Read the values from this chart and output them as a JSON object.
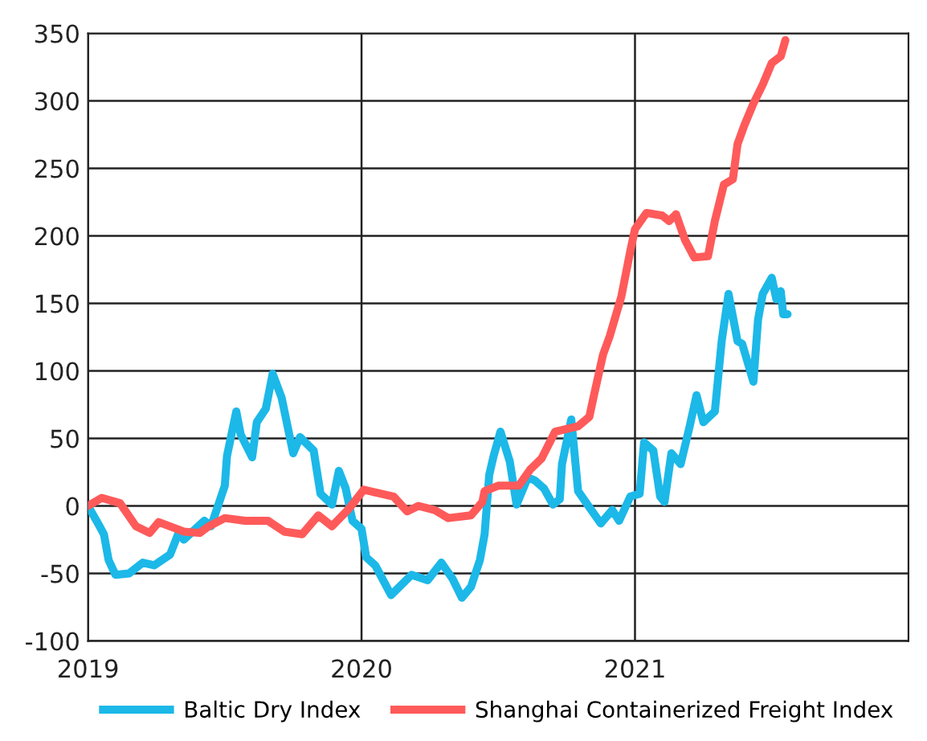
{
  "chart_data": {
    "type": "line",
    "xlim": [
      2019,
      2022
    ],
    "xticks": [
      2019,
      2020,
      2021
    ],
    "ylim": [
      -100,
      350
    ],
    "yticks": [
      -100,
      -50,
      0,
      50,
      100,
      150,
      200,
      250,
      300,
      350
    ],
    "grid": true,
    "legend": "bottom",
    "line_style": "solid",
    "marker": "none",
    "series": [
      {
        "name": "Baltic Dry Index",
        "color": "#1cb8e8",
        "x": [
          2019.0,
          2019.042,
          2019.058,
          2019.075,
          2019.1,
          2019.15,
          2019.2,
          2019.242,
          2019.3,
          2019.333,
          2019.35,
          2019.425,
          2019.45,
          2019.5,
          2019.508,
          2019.542,
          2019.558,
          2019.6,
          2019.617,
          2019.65,
          2019.675,
          2019.708,
          2019.75,
          2019.775,
          2019.825,
          2019.85,
          2019.892,
          2019.917,
          2019.942,
          2019.967,
          2020.0,
          2020.017,
          2020.05,
          2020.108,
          2020.183,
          2020.242,
          2020.292,
          2020.333,
          2020.367,
          2020.4,
          2020.433,
          2020.45,
          2020.467,
          2020.483,
          2020.508,
          2020.542,
          2020.567,
          2020.608,
          2020.633,
          2020.667,
          2020.7,
          2020.725,
          2020.733,
          2020.767,
          2020.792,
          2020.833,
          2020.875,
          2020.917,
          2020.942,
          2020.983,
          2021.017,
          2021.033,
          2021.067,
          2021.092,
          2021.108,
          2021.133,
          2021.167,
          2021.2,
          2021.225,
          2021.25,
          2021.292,
          2021.317,
          2021.342,
          2021.375,
          2021.392,
          2021.433,
          2021.45,
          2021.467,
          2021.5,
          2021.517,
          2021.533,
          2021.542,
          2021.558
        ],
        "values": [
          0,
          -15,
          -21,
          -40,
          -51,
          -50,
          -42,
          -44,
          -36,
          -19,
          -25,
          -11,
          -15,
          15,
          37,
          70,
          53,
          36,
          62,
          72,
          98,
          80,
          39,
          51,
          41,
          9,
          1,
          26,
          13,
          -11,
          -17,
          -38,
          -44,
          -66,
          -51,
          -55,
          -42,
          -54,
          -68,
          -60,
          -40,
          -21,
          23,
          37,
          55,
          33,
          1,
          21,
          19,
          13,
          1,
          5,
          31,
          64,
          11,
          -1,
          -13,
          -3,
          -11,
          7,
          9,
          47,
          41,
          7,
          3,
          39,
          31,
          59,
          82,
          62,
          70,
          122,
          157,
          122,
          120,
          92,
          138,
          157,
          169,
          153,
          159,
          142,
          142
        ]
      },
      {
        "name": "Shanghai Containerized Freight Index",
        "color": "#ff5a5a",
        "x": [
          2019.0,
          2019.05,
          2019.117,
          2019.175,
          2019.225,
          2019.258,
          2019.35,
          2019.408,
          2019.442,
          2019.5,
          2019.575,
          2019.658,
          2019.717,
          2019.783,
          2019.842,
          2019.892,
          2019.95,
          2020.008,
          2020.117,
          2020.167,
          2020.208,
          2020.267,
          2020.317,
          2020.4,
          2020.442,
          2020.45,
          2020.5,
          2020.575,
          2020.617,
          2020.658,
          2020.708,
          2020.792,
          2020.833,
          2020.85,
          2020.883,
          2020.908,
          2020.95,
          2020.983,
          2021.0,
          2021.042,
          2021.1,
          2021.125,
          2021.15,
          2021.183,
          2021.217,
          2021.267,
          2021.292,
          2021.325,
          2021.358,
          2021.375,
          2021.4,
          2021.433,
          2021.467,
          2021.5,
          2021.533,
          2021.55
        ],
        "values": [
          0,
          6,
          2,
          -15,
          -20,
          -12,
          -19,
          -20,
          -15,
          -9,
          -11,
          -11,
          -19,
          -21,
          -7,
          -15,
          -3,
          12,
          7,
          -4,
          0,
          -3,
          -9,
          -7,
          3,
          11,
          15,
          15,
          27,
          35,
          55,
          59,
          66,
          82,
          112,
          126,
          155,
          189,
          205,
          217,
          215,
          211,
          216,
          197,
          184,
          185,
          211,
          238,
          242,
          268,
          282,
          298,
          312,
          328,
          333,
          345
        ]
      }
    ]
  }
}
